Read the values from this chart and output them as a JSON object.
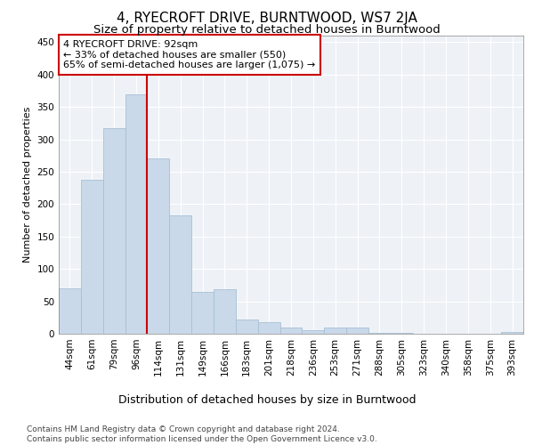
{
  "title": "4, RYECROFT DRIVE, BURNTWOOD, WS7 2JA",
  "subtitle": "Size of property relative to detached houses in Burntwood",
  "xlabel": "Distribution of detached houses by size in Burntwood",
  "ylabel": "Number of detached properties",
  "categories": [
    "44sqm",
    "61sqm",
    "79sqm",
    "96sqm",
    "114sqm",
    "131sqm",
    "149sqm",
    "166sqm",
    "183sqm",
    "201sqm",
    "218sqm",
    "236sqm",
    "253sqm",
    "271sqm",
    "288sqm",
    "305sqm",
    "323sqm",
    "340sqm",
    "358sqm",
    "375sqm",
    "393sqm"
  ],
  "values": [
    70,
    237,
    317,
    370,
    270,
    182,
    65,
    68,
    22,
    18,
    10,
    5,
    10,
    10,
    2,
    1,
    0,
    0,
    0,
    0,
    3
  ],
  "bar_color": "#c9d9ea",
  "bar_edge_color": "#a8bfd4",
  "vline_x_index": 3,
  "vline_color": "#cc0000",
  "annotation_text": "4 RYECROFT DRIVE: 92sqm\n← 33% of detached houses are smaller (550)\n65% of semi-detached houses are larger (1,075) →",
  "annotation_box_color": "#ffffff",
  "annotation_box_edge_color": "#cc0000",
  "ylim": [
    0,
    460
  ],
  "yticks": [
    0,
    50,
    100,
    150,
    200,
    250,
    300,
    350,
    400,
    450
  ],
  "bg_color": "#eef2f7",
  "grid_color": "#ffffff",
  "footer_text": "Contains HM Land Registry data © Crown copyright and database right 2024.\nContains public sector information licensed under the Open Government Licence v3.0.",
  "title_fontsize": 11,
  "subtitle_fontsize": 9.5,
  "xlabel_fontsize": 9,
  "ylabel_fontsize": 8,
  "tick_fontsize": 7.5,
  "annotation_fontsize": 8,
  "footer_fontsize": 6.5
}
